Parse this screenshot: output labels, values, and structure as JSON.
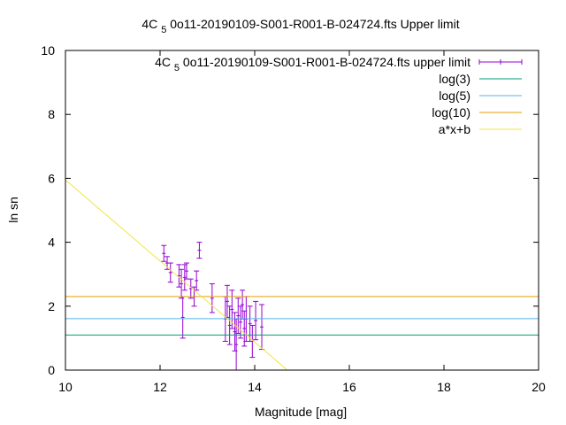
{
  "chart_data": {
    "type": "scatter",
    "title": "4C 5 0o11-20190109-S001-R001-B-024724.fts Upper limit",
    "title_parts": {
      "pre": "4C ",
      "sub": "5",
      "post": " 0o11-20190109-S001-R001-B-024724.fts Upper limit"
    },
    "xlabel": "Magnitude [mag]",
    "ylabel": "ln sn",
    "xlim": [
      10,
      20
    ],
    "ylim": [
      0,
      10
    ],
    "xticks": [
      "10",
      "12",
      "14",
      "16",
      "18",
      "20"
    ],
    "yticks": [
      "0",
      "2",
      "4",
      "6",
      "8",
      "10"
    ],
    "grid": false,
    "legend_position": "top-right",
    "series": [
      {
        "name": "4C 5 0o11-20190109-S001-R001-B-024724.fts upper limit",
        "name_parts": {
          "pre": "4C ",
          "sub": "5",
          "post": " 0o11-20190109-S001-R001-B-024724.fts upper limit"
        },
        "kind": "errorbars",
        "color": "#9400d3",
        "points": [
          {
            "x": 12.08,
            "y": 3.65,
            "err": 0.25
          },
          {
            "x": 12.15,
            "y": 3.35,
            "err": 0.2
          },
          {
            "x": 12.22,
            "y": 3.05,
            "err": 0.3
          },
          {
            "x": 12.4,
            "y": 2.95,
            "err": 0.35
          },
          {
            "x": 12.45,
            "y": 2.7,
            "err": 0.45
          },
          {
            "x": 12.48,
            "y": 1.65,
            "err": 0.65
          },
          {
            "x": 12.52,
            "y": 2.9,
            "err": 0.4
          },
          {
            "x": 12.56,
            "y": 3.1,
            "err": 0.25
          },
          {
            "x": 12.65,
            "y": 2.55,
            "err": 0.3
          },
          {
            "x": 12.72,
            "y": 2.3,
            "err": 0.3
          },
          {
            "x": 12.77,
            "y": 2.8,
            "err": 0.3
          },
          {
            "x": 12.83,
            "y": 3.75,
            "err": 0.25
          },
          {
            "x": 13.1,
            "y": 2.25,
            "err": 0.45
          },
          {
            "x": 13.38,
            "y": 1.6,
            "err": 0.7
          },
          {
            "x": 13.42,
            "y": 2.15,
            "err": 0.5
          },
          {
            "x": 13.47,
            "y": 1.4,
            "err": 0.6
          },
          {
            "x": 13.52,
            "y": 1.9,
            "err": 0.6
          },
          {
            "x": 13.58,
            "y": 1.2,
            "err": 0.6
          },
          {
            "x": 13.61,
            "y": 0.8,
            "err": 0.8
          },
          {
            "x": 13.65,
            "y": 1.7,
            "err": 0.55
          },
          {
            "x": 13.7,
            "y": 1.5,
            "err": 0.5
          },
          {
            "x": 13.74,
            "y": 2.05,
            "err": 0.45
          },
          {
            "x": 13.78,
            "y": 1.3,
            "err": 0.55
          },
          {
            "x": 13.82,
            "y": 1.6,
            "err": 0.7
          },
          {
            "x": 13.9,
            "y": 1.45,
            "err": 0.55
          },
          {
            "x": 13.95,
            "y": 0.9,
            "err": 0.5
          },
          {
            "x": 14.02,
            "y": 1.55,
            "err": 0.6
          },
          {
            "x": 14.15,
            "y": 1.35,
            "err": 0.7
          }
        ]
      },
      {
        "name": "log(3)",
        "kind": "hline",
        "y": 1.0986,
        "color": "#009e73"
      },
      {
        "name": "log(5)",
        "kind": "hline",
        "y": 1.6094,
        "color": "#56b4e9"
      },
      {
        "name": "log(10)",
        "kind": "hline",
        "y": 2.3026,
        "color": "#e69f00"
      },
      {
        "name": "a*x+b",
        "kind": "fitline",
        "color": "#f0e442",
        "points": [
          {
            "x": 10,
            "y": 5.95
          },
          {
            "x": 14.69,
            "y": 0
          }
        ]
      }
    ]
  }
}
